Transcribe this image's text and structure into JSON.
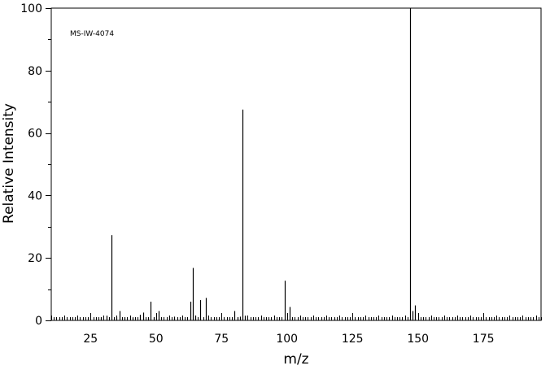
{
  "chart_data": {
    "type": "bar",
    "xlabel": "m/z",
    "ylabel": "Relative Intensity",
    "annotation": "MS-IW-4074",
    "xlim": [
      10,
      197
    ],
    "ylim": [
      0,
      100
    ],
    "xticks": [
      25,
      50,
      75,
      100,
      125,
      150,
      175
    ],
    "yticks": [
      0,
      20,
      40,
      60,
      80,
      100
    ],
    "grid": false,
    "peaks": [
      {
        "mz": 29,
        "intensity": 1.0
      },
      {
        "mz": 31,
        "intensity": 1.5
      },
      {
        "mz": 33,
        "intensity": 27.3
      },
      {
        "mz": 35,
        "intensity": 1.0
      },
      {
        "mz": 36,
        "intensity": 3.0
      },
      {
        "mz": 38,
        "intensity": 1.0
      },
      {
        "mz": 41,
        "intensity": 0.8
      },
      {
        "mz": 44,
        "intensity": 1.8
      },
      {
        "mz": 45,
        "intensity": 2.5
      },
      {
        "mz": 47,
        "intensity": 1.0
      },
      {
        "mz": 48,
        "intensity": 6.0
      },
      {
        "mz": 49,
        "intensity": 1.0
      },
      {
        "mz": 51,
        "intensity": 3.0
      },
      {
        "mz": 57,
        "intensity": 1.2
      },
      {
        "mz": 63,
        "intensity": 6.0
      },
      {
        "mz": 64,
        "intensity": 16.8
      },
      {
        "mz": 65,
        "intensity": 1.5
      },
      {
        "mz": 67,
        "intensity": 6.5
      },
      {
        "mz": 69,
        "intensity": 7.2
      },
      {
        "mz": 80,
        "intensity": 3.0
      },
      {
        "mz": 81,
        "intensity": 1.0
      },
      {
        "mz": 82,
        "intensity": 1.2
      },
      {
        "mz": 83,
        "intensity": 67.5
      },
      {
        "mz": 84,
        "intensity": 1.5
      },
      {
        "mz": 99,
        "intensity": 12.7
      },
      {
        "mz": 101,
        "intensity": 4.3
      },
      {
        "mz": 118,
        "intensity": 0.6
      },
      {
        "mz": 147,
        "intensity": 100
      },
      {
        "mz": 148,
        "intensity": 3.0
      },
      {
        "mz": 149,
        "intensity": 4.8
      }
    ]
  }
}
